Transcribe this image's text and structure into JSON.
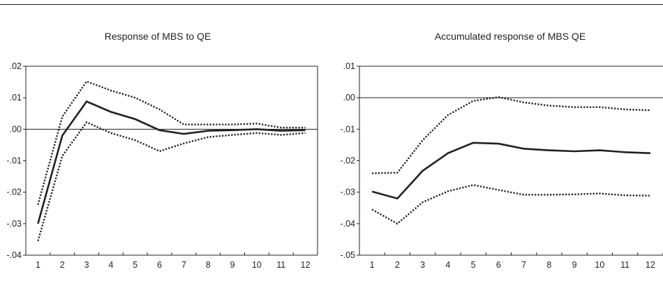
{
  "chart_data": [
    {
      "type": "line",
      "title": "Response of MBS to QE",
      "xlabel": "",
      "ylabel": "",
      "x": [
        1,
        2,
        3,
        4,
        5,
        6,
        7,
        8,
        9,
        10,
        11,
        12
      ],
      "x_tick_labels": [
        "1",
        "2",
        "3",
        "4",
        "5",
        "6",
        "7",
        "8",
        "9",
        "10",
        "11",
        "12"
      ],
      "y_tick_labels": [
        ".02",
        ".01",
        ".00",
        "-.01",
        "-.02",
        "-.03",
        "-.04"
      ],
      "y_ticks": [
        0.02,
        0.01,
        0.0,
        -0.01,
        -0.02,
        -0.03,
        -0.04
      ],
      "ylim": [
        -0.04,
        0.02
      ],
      "zero_line": true,
      "grid": false,
      "colors": {
        "line": "#231f20"
      },
      "series": [
        {
          "role": "response",
          "style": "solid",
          "values": [
            -0.03,
            -0.002,
            0.0088,
            0.0055,
            0.0032,
            -0.0003,
            -0.0015,
            -0.0005,
            -0.0003,
            0.0,
            -0.0005,
            -0.0003
          ]
        },
        {
          "role": "upper band",
          "style": "dotted",
          "values": [
            -0.024,
            0.004,
            0.0152,
            0.0123,
            0.01,
            0.0063,
            0.0015,
            0.0015,
            0.0015,
            0.0018,
            0.0005,
            0.0005
          ]
        },
        {
          "role": "lower band",
          "style": "dotted",
          "values": [
            -0.0355,
            -0.0085,
            0.0022,
            -0.0012,
            -0.0035,
            -0.007,
            -0.0045,
            -0.0025,
            -0.0018,
            -0.0012,
            -0.0018,
            -0.0012
          ]
        }
      ]
    },
    {
      "type": "line",
      "title": "Accumulated response of MBS QE",
      "xlabel": "",
      "ylabel": "",
      "x": [
        1,
        2,
        3,
        4,
        5,
        6,
        7,
        8,
        9,
        10,
        11,
        12
      ],
      "x_tick_labels": [
        "1",
        "2",
        "3",
        "4",
        "5",
        "6",
        "7",
        "8",
        "9",
        "10",
        "11",
        "12"
      ],
      "y_tick_labels": [
        ".01",
        ".00",
        "-.01",
        "-.02",
        "-.03",
        "-.04",
        "-.05"
      ],
      "y_ticks": [
        0.01,
        0.0,
        -0.01,
        -0.02,
        -0.03,
        -0.04,
        -0.05
      ],
      "ylim": [
        -0.05,
        0.01
      ],
      "zero_line": true,
      "grid": false,
      "colors": {
        "line": "#231f20"
      },
      "series": [
        {
          "role": "response",
          "style": "solid",
          "values": [
            -0.0298,
            -0.032,
            -0.0232,
            -0.0176,
            -0.0143,
            -0.0146,
            -0.0162,
            -0.0167,
            -0.017,
            -0.0167,
            -0.0173,
            -0.0176
          ]
        },
        {
          "role": "upper band",
          "style": "dotted",
          "values": [
            -0.024,
            -0.0238,
            -0.0135,
            -0.0055,
            -0.001,
            0.0002,
            -0.0015,
            -0.0025,
            -0.003,
            -0.003,
            -0.0037,
            -0.004
          ]
        },
        {
          "role": "lower band",
          "style": "dotted",
          "values": [
            -0.0355,
            -0.04,
            -0.0332,
            -0.0297,
            -0.0277,
            -0.0293,
            -0.0308,
            -0.0308,
            -0.0307,
            -0.0304,
            -0.031,
            -0.0311
          ]
        }
      ]
    }
  ]
}
